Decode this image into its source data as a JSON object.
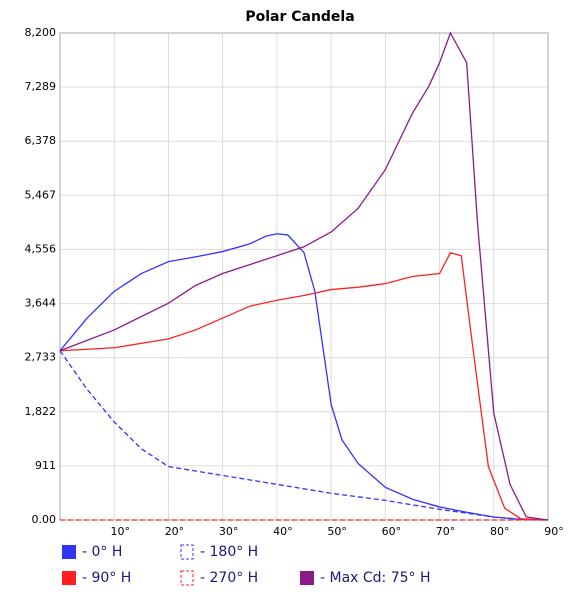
{
  "chart_data": {
    "type": "line",
    "title": "Polar Candela",
    "xlim": [
      0,
      90
    ],
    "ylim": [
      0,
      8200
    ],
    "xticks": [
      {
        "value": 10,
        "label": "10°"
      },
      {
        "value": 20,
        "label": "20°"
      },
      {
        "value": 30,
        "label": "30°"
      },
      {
        "value": 40,
        "label": "40°"
      },
      {
        "value": 50,
        "label": "50°"
      },
      {
        "value": 60,
        "label": "60°"
      },
      {
        "value": 70,
        "label": "70°"
      },
      {
        "value": 80,
        "label": "80°"
      },
      {
        "value": 90,
        "label": "90°"
      }
    ],
    "yticks": [
      {
        "value": 0,
        "label": "0.00"
      },
      911,
      {
        "value": 1822,
        "label": "1,822"
      },
      {
        "value": 2733,
        "label": "2,733"
      },
      {
        "value": 3644,
        "label": "3,644"
      },
      {
        "value": 4556,
        "label": "4,556"
      },
      {
        "value": 5467,
        "label": "5,467"
      },
      {
        "value": 6378,
        "label": "6,378"
      },
      {
        "value": 7289,
        "label": "7,289"
      },
      {
        "value": 8200,
        "label": "8,200"
      }
    ],
    "grid": true,
    "series": [
      {
        "name": "- 0° H",
        "color": "#3333ff",
        "dashed": false,
        "x": [
          0,
          5,
          10,
          15,
          20,
          25,
          30,
          35,
          38,
          40,
          42,
          45,
          47,
          50,
          52,
          55,
          60,
          65,
          70,
          75,
          80,
          85,
          90
        ],
        "values": [
          2850,
          3400,
          3850,
          4150,
          4350,
          4430,
          4520,
          4650,
          4780,
          4820,
          4800,
          4500,
          3850,
          1950,
          1350,
          950,
          550,
          350,
          220,
          130,
          50,
          10,
          0
        ]
      },
      {
        "name": "- 180° H",
        "color": "#3333ff",
        "dashed": true,
        "x": [
          0,
          5,
          10,
          15,
          20,
          30,
          40,
          50,
          60,
          70,
          80,
          85,
          90
        ],
        "values": [
          2850,
          2200,
          1650,
          1200,
          900,
          750,
          600,
          450,
          330,
          180,
          50,
          10,
          0
        ]
      },
      {
        "name": "- 90° H",
        "color": "#ff2020",
        "dashed": false,
        "x": [
          0,
          10,
          20,
          25,
          30,
          35,
          40,
          45,
          50,
          55,
          60,
          65,
          70,
          72,
          74,
          76,
          79,
          82,
          85,
          90
        ],
        "values": [
          2850,
          2900,
          3050,
          3200,
          3400,
          3600,
          3700,
          3780,
          3880,
          3920,
          3980,
          4100,
          4150,
          4500,
          4450,
          3000,
          900,
          200,
          20,
          0
        ]
      },
      {
        "name": "- 270° H",
        "color": "#ff2020",
        "dashed": true,
        "x": [
          0,
          90
        ],
        "values": [
          0,
          0
        ]
      },
      {
        "name": "- Max Cd: 75° H",
        "color": "#8b1a8b",
        "dashed": false,
        "x": [
          0,
          10,
          20,
          25,
          30,
          35,
          40,
          45,
          50,
          55,
          60,
          65,
          68,
          70,
          72,
          75,
          77,
          80,
          83,
          86,
          90
        ],
        "values": [
          2850,
          3200,
          3650,
          3950,
          4150,
          4300,
          4450,
          4600,
          4850,
          5250,
          5900,
          6850,
          7300,
          7700,
          8200,
          7700,
          5000,
          1800,
          600,
          50,
          0
        ]
      }
    ]
  }
}
